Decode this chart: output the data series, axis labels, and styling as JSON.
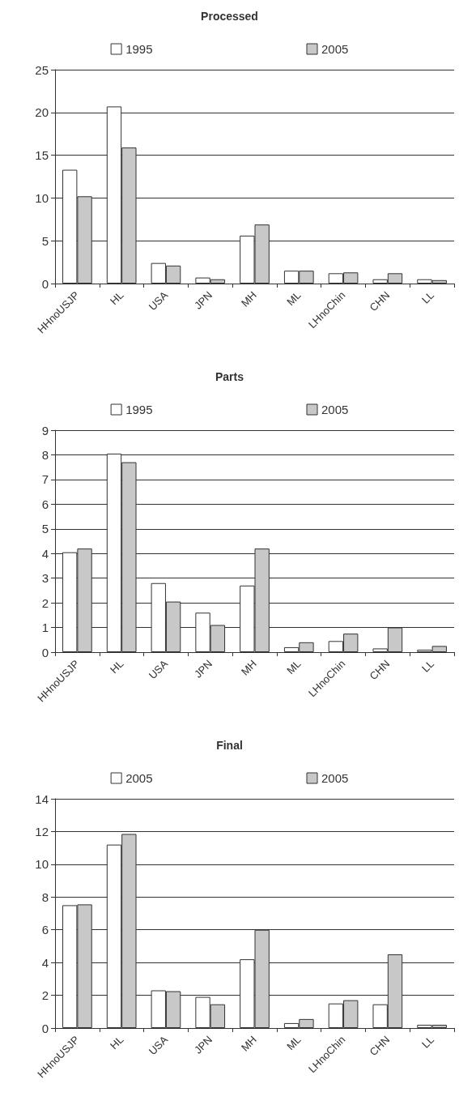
{
  "chart_data": [
    {
      "type": "bar",
      "title": "Processed",
      "categories": [
        "HHnoUSJP",
        "HL",
        "USA",
        "JPN",
        "MH",
        "ML",
        "LHnoChin",
        "CHN",
        "LL"
      ],
      "series": [
        {
          "name": "1995",
          "color": "#ffffff",
          "values": [
            13.3,
            20.7,
            2.4,
            0.7,
            5.6,
            1.5,
            1.2,
            0.5,
            0.5
          ]
        },
        {
          "name": "2005",
          "color": "#c8c8c8",
          "values": [
            10.2,
            15.9,
            2.1,
            0.5,
            6.9,
            1.5,
            1.3,
            1.2,
            0.4
          ]
        }
      ],
      "ylim": [
        0,
        25
      ],
      "yticks": [
        0,
        5,
        10,
        15,
        20,
        25
      ],
      "grid": "y",
      "legend": "top"
    },
    {
      "type": "bar",
      "title": "Parts",
      "categories": [
        "HHnoUSJP",
        "HL",
        "USA",
        "JPN",
        "MH",
        "ML",
        "LHnoChin",
        "CHN",
        "LL"
      ],
      "series": [
        {
          "name": "1995",
          "color": "#ffffff",
          "values": [
            4.05,
            8.05,
            2.8,
            1.6,
            2.7,
            0.2,
            0.45,
            0.15,
            0.1
          ]
        },
        {
          "name": "2005",
          "color": "#c8c8c8",
          "values": [
            4.2,
            7.7,
            2.05,
            1.1,
            4.2,
            0.4,
            0.75,
            1.0,
            0.25
          ]
        }
      ],
      "ylim": [
        0,
        9
      ],
      "yticks": [
        0,
        1,
        2,
        3,
        4,
        5,
        6,
        7,
        8,
        9
      ],
      "grid": "y",
      "legend": "top"
    },
    {
      "type": "bar",
      "title": "Final",
      "categories": [
        "HHnoUSJP",
        "HL",
        "USA",
        "JPN",
        "MH",
        "ML",
        "LHnoChin",
        "CHN",
        "LL"
      ],
      "series": [
        {
          "name": "2005",
          "color": "#ffffff",
          "values": [
            7.5,
            11.2,
            2.3,
            1.9,
            4.2,
            0.3,
            1.5,
            1.45,
            0.2
          ]
        },
        {
          "name": "2005",
          "color": "#c8c8c8",
          "values": [
            7.55,
            11.85,
            2.25,
            1.45,
            6.0,
            0.55,
            1.7,
            4.5,
            0.2
          ]
        }
      ],
      "ylim": [
        0,
        14
      ],
      "yticks": [
        0,
        2,
        4,
        6,
        8,
        10,
        12,
        14
      ],
      "grid": "y",
      "legend": "top"
    }
  ]
}
